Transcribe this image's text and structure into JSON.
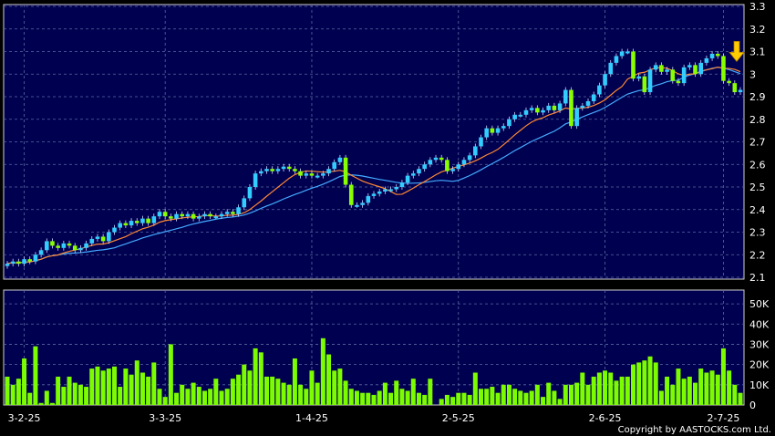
{
  "chart_data": [
    {
      "type": "candlestick",
      "title": "",
      "ylim": [
        2.1,
        3.3
      ],
      "y_ticks": [
        "3.3",
        "3.2",
        "3.1",
        "3",
        "2.9",
        "2.8",
        "2.7",
        "2.6",
        "2.5",
        "2.4",
        "2.3",
        "2.2",
        "2.1"
      ],
      "x_ticks": [
        "3-2-25",
        "3-3-25",
        "1-4-25",
        "2-5-25",
        "2-6-25",
        "2-7-25"
      ],
      "grid": true,
      "up_color": "#33ccff",
      "down_color": "#88ff00",
      "ma_short_color": "#ff8833",
      "ma_long_color": "#44aaff",
      "marker": {
        "type": "down-arrow",
        "color": "#ffcc00",
        "near_price": 3.04
      },
      "closes": [
        2.16,
        2.17,
        2.16,
        2.18,
        2.17,
        2.2,
        2.22,
        2.26,
        2.24,
        2.23,
        2.25,
        2.24,
        2.22,
        2.23,
        2.25,
        2.27,
        2.28,
        2.26,
        2.3,
        2.32,
        2.34,
        2.33,
        2.35,
        2.34,
        2.36,
        2.34,
        2.37,
        2.39,
        2.37,
        2.36,
        2.38,
        2.37,
        2.38,
        2.36,
        2.37,
        2.38,
        2.37,
        2.37,
        2.38,
        2.39,
        2.38,
        2.41,
        2.45,
        2.5,
        2.56,
        2.57,
        2.58,
        2.57,
        2.58,
        2.59,
        2.58,
        2.57,
        2.55,
        2.56,
        2.55,
        2.55,
        2.56,
        2.58,
        2.61,
        2.63,
        2.51,
        2.42,
        2.42,
        2.43,
        2.46,
        2.47,
        2.48,
        2.49,
        2.49,
        2.5,
        2.52,
        2.55,
        2.56,
        2.58,
        2.6,
        2.62,
        2.63,
        2.62,
        2.57,
        2.58,
        2.6,
        2.62,
        2.64,
        2.68,
        2.72,
        2.76,
        2.74,
        2.76,
        2.77,
        2.8,
        2.82,
        2.82,
        2.84,
        2.85,
        2.83,
        2.84,
        2.86,
        2.84,
        2.87,
        2.93,
        2.77,
        2.85,
        2.86,
        2.88,
        2.91,
        2.95,
        3.0,
        3.05,
        3.08,
        3.1,
        3.1,
        2.98,
        2.99,
        2.92,
        3.02,
        3.04,
        3.01,
        3.02,
        2.97,
        2.96,
        3.03,
        3.04,
        3.0,
        3.05,
        3.07,
        3.09,
        3.08,
        2.97,
        2.96,
        2.92,
        2.93
      ],
      "volume_ylim": [
        0,
        55
      ],
      "volume_unit": "K",
      "volume_ticks": [
        "50K",
        "40K",
        "30K",
        "20K",
        "10K",
        "0"
      ],
      "volume_color": "#7cfc00",
      "volumes": [
        14,
        10,
        13,
        23,
        6,
        29,
        1,
        7,
        1,
        14,
        9,
        14,
        11,
        10,
        9,
        18,
        19,
        17,
        18,
        19,
        9,
        18,
        15,
        22,
        16,
        14,
        21,
        8,
        4,
        30,
        6,
        10,
        8,
        11,
        9,
        7,
        8,
        13,
        7,
        8,
        13,
        15,
        20,
        17,
        28,
        26,
        14,
        14,
        13,
        11,
        10,
        23,
        10,
        8,
        17,
        11,
        33,
        25,
        17,
        18,
        12,
        8,
        7,
        6,
        6,
        5,
        7,
        11,
        6,
        12,
        8,
        7,
        13,
        6,
        5,
        13,
        0,
        3,
        5,
        4,
        6,
        6,
        5,
        16,
        8,
        8,
        9,
        6,
        10,
        10,
        8,
        7,
        6,
        7,
        10,
        4,
        11,
        7,
        3,
        10,
        10,
        11,
        16,
        10,
        14,
        16,
        17,
        16,
        12,
        14,
        14,
        20,
        21,
        22,
        24,
        21,
        7,
        14,
        10,
        18,
        13,
        14,
        11,
        18,
        16,
        17,
        15,
        28,
        17,
        10,
        6
      ],
      "copyright": "Copyright by AASTOCKS.com Ltd."
    }
  ]
}
